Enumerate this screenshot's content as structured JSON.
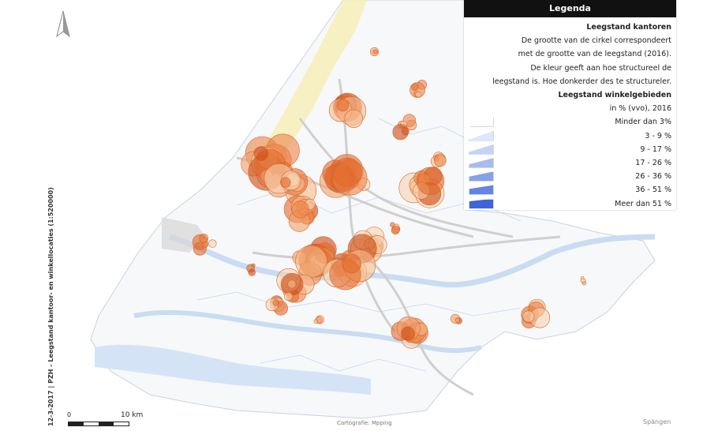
{
  "legend": {
    "title": "Legenda",
    "offices_heading": "Leegstand kantoren",
    "offices_desc": [
      "De grootte van de cirkel correspondeert",
      "met de grootte van de leegstand (2016).",
      "De kleur geeft aan hoe structureel de",
      "leegstand is. Hoe donkerder des te structureler."
    ],
    "shops_heading": "Leegstand winkelgebieden",
    "shops_unit": "in % (vvo), 2016",
    "classes": [
      {
        "label": "Minder dan 3%",
        "color": "#ffffff"
      },
      {
        "label": "3 - 9 %",
        "color": "#dde6fa"
      },
      {
        "label": "9 - 17 %",
        "color": "#c4d3f6"
      },
      {
        "label": "17 - 26 %",
        "color": "#a6bbf0"
      },
      {
        "label": "26 - 36 %",
        "color": "#86a1ea"
      },
      {
        "label": "36 - 51 %",
        "color": "#6384e2"
      },
      {
        "label": "Meer dan 51 %",
        "color": "#3f64d8"
      }
    ]
  },
  "side_text": "12-3-2017 | PZH - Leegstand kantoor- en winkellocaties  (1:520000)",
  "scale": {
    "zero": "0",
    "ten": "10 km"
  },
  "credit": "Cartografie: Mpping",
  "brand": "Spängen",
  "colors": {
    "land": "#fafafa",
    "water": "#dbe9f8",
    "dune": "#f6eeb4",
    "road": "#cfcfcf",
    "circle_light": "#f7c9a0",
    "circle_dark": "#cc4a12"
  }
}
